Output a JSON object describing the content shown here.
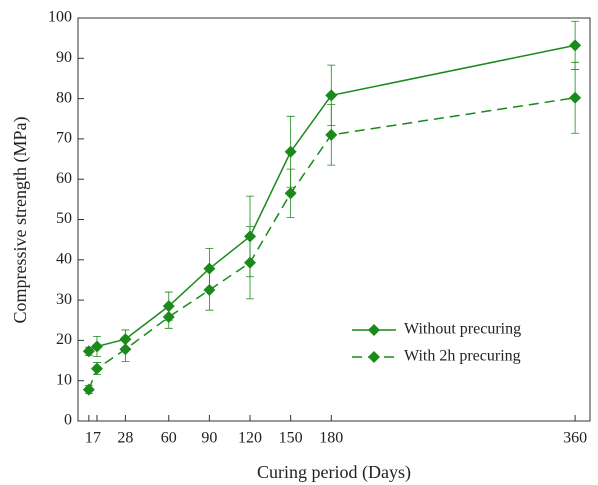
{
  "chart_data": {
    "type": "line",
    "x_label": "Curing period (Days)",
    "y_label": "Compressive strength (MPa)",
    "x": [
      1,
      7,
      28,
      60,
      90,
      120,
      150,
      180,
      360
    ],
    "xlim": [
      -7,
      371
    ],
    "xticks": [
      1,
      7,
      28,
      60,
      90,
      120,
      150,
      180,
      360
    ],
    "ylim": [
      0,
      100
    ],
    "yticks": [
      0,
      10,
      20,
      30,
      40,
      50,
      60,
      70,
      80,
      90,
      100
    ],
    "legend": "lower right",
    "series": [
      {
        "name": "Without precuring",
        "color": "#1a8a1a",
        "dash": "solid",
        "values": [
          17.3,
          18.5,
          20.3,
          28.5,
          37.8,
          45.8,
          66.8,
          80.8,
          93.2
        ],
        "errors": [
          1,
          2.5,
          2.3,
          3.5,
          5,
          10,
          8.8,
          7.5,
          6
        ]
      },
      {
        "name": "With 2h precuring",
        "color": "#1a8a1a",
        "dash": "dashed",
        "values": [
          7.8,
          13,
          17.8,
          25.8,
          32.5,
          39.3,
          56.5,
          71,
          80.2
        ],
        "errors": [
          1,
          1.5,
          3,
          2.8,
          5,
          9,
          6,
          7.5,
          8.8
        ]
      }
    ]
  }
}
